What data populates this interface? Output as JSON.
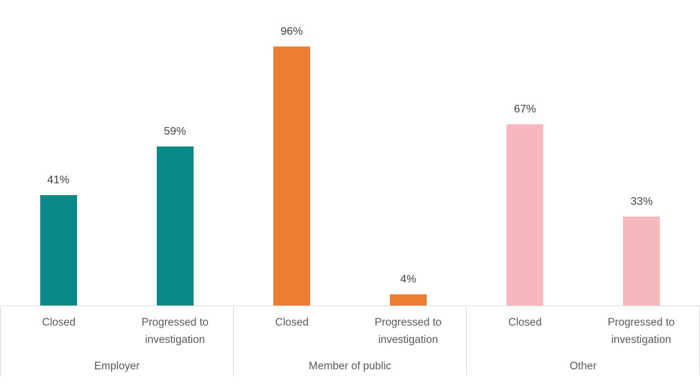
{
  "chart_data": {
    "type": "bar",
    "title": "",
    "xlabel": "",
    "ylabel": "",
    "ylim": [
      0,
      100
    ],
    "value_format": "percent",
    "gridlines": false,
    "legend": "none",
    "data_labels": true,
    "axis_line_color": "#d9d9d9",
    "separator_line_color": "#d9d9d9",
    "tick_label_color": "#595959",
    "data_label_color": "#404040",
    "categories": [
      "Closed",
      "Progressed to investigation"
    ],
    "groups": [
      {
        "label": "Employer",
        "color": "#088a89",
        "values": [
          41,
          59
        ],
        "value_labels": [
          "41%",
          "59%"
        ]
      },
      {
        "label": "Member of public",
        "color": "#ed7d31",
        "values": [
          96,
          4
        ],
        "value_labels": [
          "96%",
          "4%"
        ]
      },
      {
        "label": "Other",
        "color": "#f5b9bd",
        "values": [
          67,
          33
        ],
        "value_labels": [
          "67%",
          "33%"
        ]
      }
    ]
  }
}
